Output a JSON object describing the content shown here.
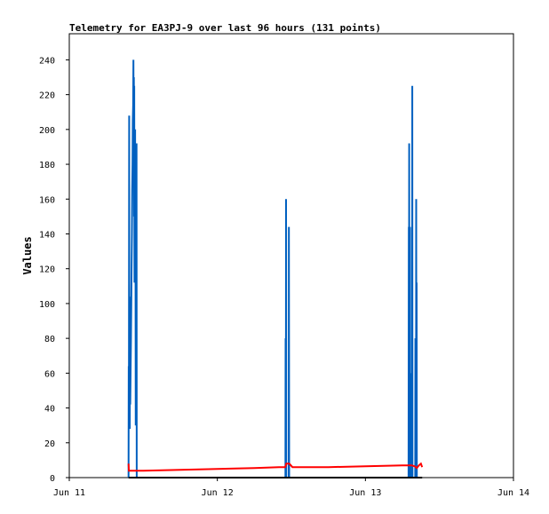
{
  "chart_data": {
    "type": "line",
    "title": "Telemetry for EA3PJ-9 over last 96 hours (131 points)",
    "xlabel": "",
    "ylabel": "Values",
    "xlim": [
      "Jun 11",
      "Jun 14"
    ],
    "x_ticks": [
      "Jun 11",
      "Jun 12",
      "Jun 13",
      "Jun 14"
    ],
    "ylim": [
      0,
      255
    ],
    "y_ticks": [
      0,
      20,
      40,
      60,
      80,
      100,
      120,
      140,
      160,
      180,
      200,
      220,
      240
    ],
    "grid": false,
    "legend": "none",
    "series": [
      {
        "color": "#0060c0",
        "points": [
          [
            "Jun 11 09:36",
            0
          ],
          [
            "Jun 11 09:38",
            64
          ],
          [
            "Jun 11 09:40",
            30
          ],
          [
            "Jun 11 09:42",
            208
          ],
          [
            "Jun 11 09:44",
            55
          ],
          [
            "Jun 11 09:46",
            104
          ],
          [
            "Jun 11 09:48",
            28
          ],
          [
            "Jun 11 09:50",
            96
          ],
          [
            "Jun 11 09:53",
            42
          ],
          [
            "Jun 11 09:56",
            60
          ],
          [
            "Jun 11 10:00",
            78
          ],
          [
            "Jun 11 10:03",
            100
          ],
          [
            "Jun 11 10:06",
            120
          ],
          [
            "Jun 11 10:09",
            140
          ],
          [
            "Jun 11 10:12",
            165
          ],
          [
            "Jun 11 10:15",
            180
          ],
          [
            "Jun 11 10:18",
            205
          ],
          [
            "Jun 11 10:21",
            214
          ],
          [
            "Jun 11 10:24",
            240
          ],
          [
            "Jun 11 10:26",
            180
          ],
          [
            "Jun 11 10:28",
            230
          ],
          [
            "Jun 11 10:30",
            150
          ],
          [
            "Jun 11 10:32",
            225
          ],
          [
            "Jun 11 10:34",
            112
          ],
          [
            "Jun 11 10:36",
            176
          ],
          [
            "Jun 11 10:38",
            130
          ],
          [
            "Jun 11 10:40",
            200
          ],
          [
            "Jun 11 10:42",
            112
          ],
          [
            "Jun 11 10:44",
            145
          ],
          [
            "Jun 11 10:46",
            30
          ],
          [
            "Jun 11 10:50",
            70
          ],
          [
            "Jun 11 10:52",
            48
          ],
          [
            "Jun 11 10:54",
            192
          ],
          [
            "Jun 11 10:56",
            0
          ],
          [
            "Jun 12 11:02",
            0
          ],
          [
            "Jun 12 11:04",
            80
          ],
          [
            "Jun 12 11:06",
            0
          ],
          [
            "Jun 12 11:08",
            160
          ],
          [
            "Jun 12 11:10",
            0
          ],
          [
            "Jun 12 11:34",
            0
          ],
          [
            "Jun 12 11:36",
            144
          ],
          [
            "Jun 12 11:38",
            0
          ],
          [
            "Jun 13 07:00",
            0
          ],
          [
            "Jun 13 07:02",
            144
          ],
          [
            "Jun 13 07:04",
            0
          ],
          [
            "Jun 13 07:06",
            192
          ],
          [
            "Jun 13 07:08",
            0
          ],
          [
            "Jun 13 07:10",
            72
          ],
          [
            "Jun 13 07:12",
            0
          ],
          [
            "Jun 13 07:14",
            144
          ],
          [
            "Jun 13 07:16",
            10
          ],
          [
            "Jun 13 07:18",
            34
          ],
          [
            "Jun 13 07:20",
            0
          ],
          [
            "Jun 13 07:22",
            60
          ],
          [
            "Jun 13 07:26",
            0
          ],
          [
            "Jun 13 07:34",
            0
          ],
          [
            "Jun 13 07:36",
            225
          ],
          [
            "Jun 13 07:38",
            0
          ],
          [
            "Jun 13 08:04",
            0
          ],
          [
            "Jun 13 08:06",
            80
          ],
          [
            "Jun 13 08:08",
            0
          ],
          [
            "Jun 13 08:12",
            0
          ],
          [
            "Jun 13 08:14",
            160
          ],
          [
            "Jun 13 08:16",
            0
          ],
          [
            "Jun 13 08:18",
            112
          ],
          [
            "Jun 13 08:20",
            0
          ]
        ]
      },
      {
        "color": "#ff0000",
        "points": [
          [
            "Jun 11 09:36",
            8
          ],
          [
            "Jun 11 09:40",
            4
          ],
          [
            "Jun 11 12:00",
            4
          ],
          [
            "Jun 11 18:00",
            4.5
          ],
          [
            "Jun 12 00:00",
            5
          ],
          [
            "Jun 12 06:00",
            5.5
          ],
          [
            "Jun 12 10:00",
            6
          ],
          [
            "Jun 12 11:00",
            6
          ],
          [
            "Jun 12 11:10",
            8
          ],
          [
            "Jun 12 11:40",
            8
          ],
          [
            "Jun 12 12:10",
            6
          ],
          [
            "Jun 12 18:00",
            6
          ],
          [
            "Jun 13 00:00",
            6.5
          ],
          [
            "Jun 13 06:00",
            7
          ],
          [
            "Jun 13 07:30",
            7
          ],
          [
            "Jun 13 08:00",
            6.5
          ],
          [
            "Jun 13 08:20",
            5.5
          ],
          [
            "Jun 13 08:40",
            7
          ],
          [
            "Jun 13 09:00",
            8
          ],
          [
            "Jun 13 09:12",
            6
          ]
        ]
      },
      {
        "color": "#000000",
        "points": [
          [
            "Jun 11 09:36",
            0
          ],
          [
            "Jun 13 09:12",
            0
          ]
        ]
      }
    ]
  }
}
